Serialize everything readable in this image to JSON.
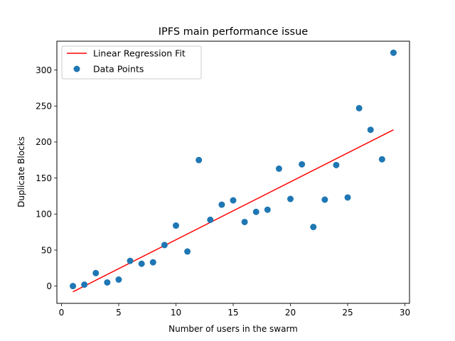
{
  "chart_data": {
    "type": "scatter",
    "title": "IPFS main performance issue",
    "xlabel": "Number of users in the swarm",
    "ylabel": "Duplicate Blocks",
    "xlim": [
      -0.4,
      30.4
    ],
    "ylim": [
      -24,
      340
    ],
    "xticks": [
      0,
      5,
      10,
      15,
      20,
      25,
      30
    ],
    "yticks": [
      0,
      50,
      100,
      150,
      200,
      250,
      300
    ],
    "grid": false,
    "legend_position": "top-left",
    "series": [
      {
        "name": "Linear Regression Fit",
        "kind": "line",
        "color": "#ff0000",
        "x": [
          1,
          29
        ],
        "y": [
          -8,
          217
        ]
      },
      {
        "name": "Data Points",
        "kind": "scatter",
        "color": "#1f77b4",
        "x": [
          1,
          2,
          3,
          4,
          5,
          6,
          7,
          8,
          9,
          10,
          11,
          12,
          13,
          14,
          15,
          16,
          17,
          18,
          19,
          20,
          21,
          22,
          23,
          24,
          25,
          26,
          27,
          28,
          29
        ],
        "y": [
          0,
          2,
          18,
          5,
          9,
          35,
          31,
          33,
          57,
          84,
          48,
          175,
          92,
          113,
          119,
          89,
          103,
          106,
          163,
          121,
          169,
          82,
          120,
          168,
          123,
          247,
          217,
          176,
          324
        ]
      }
    ]
  }
}
